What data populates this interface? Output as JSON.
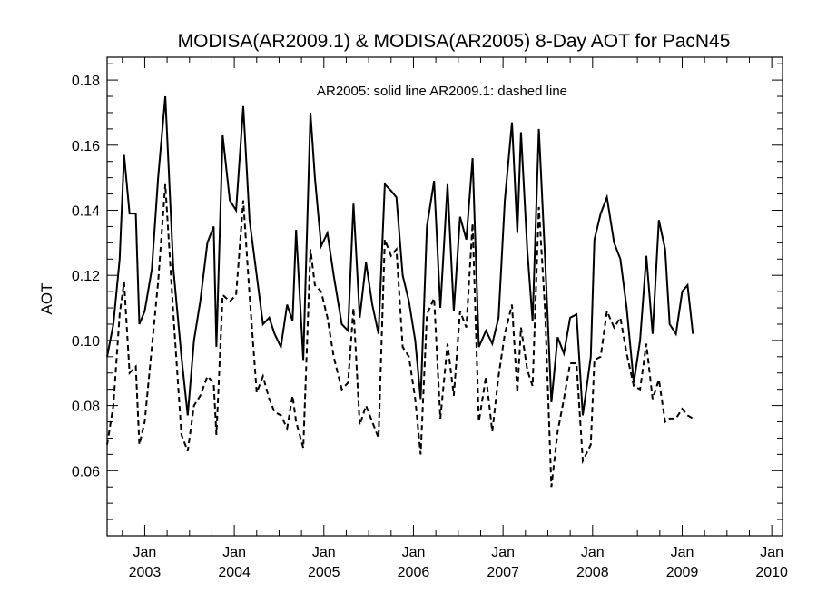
{
  "chart_data": {
    "type": "line",
    "title": "MODISA(AR2009.1) & MODISA(AR2005) 8-Day AOT for PacN45",
    "annotation": "AR2005: solid line   AR2009.1: dashed line",
    "ylabel": "AOT",
    "xlabel": "",
    "ylim": [
      0.04,
      0.187
    ],
    "xlim": [
      2002.58,
      2010.12
    ],
    "y_ticks": [
      0.06,
      0.08,
      0.1,
      0.12,
      0.14,
      0.16,
      0.18
    ],
    "y_tick_labels": [
      "0.06",
      "0.08",
      "0.10",
      "0.12",
      "0.14",
      "0.16",
      "0.18"
    ],
    "x_ticks": [
      {
        "value": 2003,
        "line1": "Jan",
        "line2": "2003"
      },
      {
        "value": 2004,
        "line1": "Jan",
        "line2": "2004"
      },
      {
        "value": 2005,
        "line1": "Jan",
        "line2": "2005"
      },
      {
        "value": 2006,
        "line1": "Jan",
        "line2": "2006"
      },
      {
        "value": 2007,
        "line1": "Jan",
        "line2": "2007"
      },
      {
        "value": 2008,
        "line1": "Jan",
        "line2": "2008"
      },
      {
        "value": 2009,
        "line1": "Jan",
        "line2": "2009"
      },
      {
        "value": 2010,
        "line1": "Jan",
        "line2": "2010"
      }
    ],
    "grid": false,
    "series": [
      {
        "name": "AR2005",
        "style": "solid",
        "points": [
          [
            2002.58,
            0.095
          ],
          [
            2002.65,
            0.105
          ],
          [
            2002.72,
            0.125
          ],
          [
            2002.77,
            0.157
          ],
          [
            2002.83,
            0.139
          ],
          [
            2002.9,
            0.139
          ],
          [
            2002.94,
            0.105
          ],
          [
            2003.0,
            0.109
          ],
          [
            2003.08,
            0.122
          ],
          [
            2003.15,
            0.15
          ],
          [
            2003.23,
            0.175
          ],
          [
            2003.32,
            0.122
          ],
          [
            2003.41,
            0.095
          ],
          [
            2003.48,
            0.077
          ],
          [
            2003.55,
            0.1
          ],
          [
            2003.62,
            0.112
          ],
          [
            2003.7,
            0.13
          ],
          [
            2003.77,
            0.135
          ],
          [
            2003.8,
            0.098
          ],
          [
            2003.87,
            0.163
          ],
          [
            2003.95,
            0.143
          ],
          [
            2004.02,
            0.14
          ],
          [
            2004.1,
            0.172
          ],
          [
            2004.17,
            0.137
          ],
          [
            2004.25,
            0.12
          ],
          [
            2004.32,
            0.105
          ],
          [
            2004.39,
            0.107
          ],
          [
            2004.45,
            0.102
          ],
          [
            2004.52,
            0.098
          ],
          [
            2004.59,
            0.111
          ],
          [
            2004.65,
            0.106
          ],
          [
            2004.69,
            0.134
          ],
          [
            2004.77,
            0.094
          ],
          [
            2004.85,
            0.17
          ],
          [
            2004.9,
            0.15
          ],
          [
            2004.97,
            0.129
          ],
          [
            2005.04,
            0.133
          ],
          [
            2005.11,
            0.12
          ],
          [
            2005.2,
            0.105
          ],
          [
            2005.27,
            0.103
          ],
          [
            2005.33,
            0.142
          ],
          [
            2005.4,
            0.107
          ],
          [
            2005.47,
            0.124
          ],
          [
            2005.54,
            0.111
          ],
          [
            2005.61,
            0.102
          ],
          [
            2005.68,
            0.148
          ],
          [
            2005.75,
            0.146
          ],
          [
            2005.81,
            0.144
          ],
          [
            2005.88,
            0.12
          ],
          [
            2005.95,
            0.112
          ],
          [
            2006.02,
            0.1
          ],
          [
            2006.08,
            0.082
          ],
          [
            2006.15,
            0.135
          ],
          [
            2006.23,
            0.149
          ],
          [
            2006.3,
            0.11
          ],
          [
            2006.38,
            0.148
          ],
          [
            2006.45,
            0.109
          ],
          [
            2006.52,
            0.138
          ],
          [
            2006.59,
            0.131
          ],
          [
            2006.66,
            0.156
          ],
          [
            2006.73,
            0.098
          ],
          [
            2006.81,
            0.103
          ],
          [
            2006.88,
            0.099
          ],
          [
            2006.95,
            0.107
          ],
          [
            2007.02,
            0.143
          ],
          [
            2007.1,
            0.167
          ],
          [
            2007.16,
            0.133
          ],
          [
            2007.2,
            0.164
          ],
          [
            2007.27,
            0.128
          ],
          [
            2007.33,
            0.106
          ],
          [
            2007.4,
            0.165
          ],
          [
            2007.47,
            0.125
          ],
          [
            2007.54,
            0.081
          ],
          [
            2007.61,
            0.101
          ],
          [
            2007.68,
            0.096
          ],
          [
            2007.75,
            0.107
          ],
          [
            2007.82,
            0.108
          ],
          [
            2007.89,
            0.077
          ],
          [
            2007.98,
            0.095
          ],
          [
            2008.02,
            0.131
          ],
          [
            2008.09,
            0.139
          ],
          [
            2008.16,
            0.144
          ],
          [
            2008.24,
            0.13
          ],
          [
            2008.31,
            0.125
          ],
          [
            2008.38,
            0.11
          ],
          [
            2008.46,
            0.087
          ],
          [
            2008.53,
            0.1
          ],
          [
            2008.6,
            0.126
          ],
          [
            2008.67,
            0.102
          ],
          [
            2008.74,
            0.137
          ],
          [
            2008.81,
            0.128
          ],
          [
            2008.86,
            0.105
          ],
          [
            2008.93,
            0.102
          ],
          [
            2009.0,
            0.115
          ],
          [
            2009.06,
            0.117
          ],
          [
            2009.12,
            0.102
          ]
        ]
      },
      {
        "name": "AR2009.1",
        "style": "dashed",
        "points": [
          [
            2002.58,
            0.068
          ],
          [
            2002.65,
            0.08
          ],
          [
            2002.72,
            0.108
          ],
          [
            2002.77,
            0.118
          ],
          [
            2002.83,
            0.09
          ],
          [
            2002.9,
            0.092
          ],
          [
            2002.94,
            0.068
          ],
          [
            2003.0,
            0.075
          ],
          [
            2003.08,
            0.098
          ],
          [
            2003.15,
            0.118
          ],
          [
            2003.23,
            0.148
          ],
          [
            2003.32,
            0.108
          ],
          [
            2003.41,
            0.071
          ],
          [
            2003.48,
            0.066
          ],
          [
            2003.55,
            0.08
          ],
          [
            2003.62,
            0.083
          ],
          [
            2003.7,
            0.089
          ],
          [
            2003.77,
            0.087
          ],
          [
            2003.8,
            0.071
          ],
          [
            2003.87,
            0.114
          ],
          [
            2003.95,
            0.112
          ],
          [
            2004.02,
            0.114
          ],
          [
            2004.1,
            0.143
          ],
          [
            2004.17,
            0.114
          ],
          [
            2004.25,
            0.084
          ],
          [
            2004.32,
            0.089
          ],
          [
            2004.39,
            0.082
          ],
          [
            2004.45,
            0.078
          ],
          [
            2004.52,
            0.077
          ],
          [
            2004.59,
            0.073
          ],
          [
            2004.65,
            0.083
          ],
          [
            2004.69,
            0.075
          ],
          [
            2004.77,
            0.067
          ],
          [
            2004.85,
            0.128
          ],
          [
            2004.9,
            0.117
          ],
          [
            2004.97,
            0.115
          ],
          [
            2005.04,
            0.107
          ],
          [
            2005.11,
            0.095
          ],
          [
            2005.2,
            0.085
          ],
          [
            2005.27,
            0.087
          ],
          [
            2005.33,
            0.11
          ],
          [
            2005.4,
            0.074
          ],
          [
            2005.47,
            0.08
          ],
          [
            2005.54,
            0.075
          ],
          [
            2005.61,
            0.07
          ],
          [
            2005.68,
            0.131
          ],
          [
            2005.75,
            0.126
          ],
          [
            2005.81,
            0.128
          ],
          [
            2005.88,
            0.098
          ],
          [
            2005.95,
            0.095
          ],
          [
            2006.02,
            0.082
          ],
          [
            2006.08,
            0.065
          ],
          [
            2006.15,
            0.108
          ],
          [
            2006.23,
            0.113
          ],
          [
            2006.3,
            0.076
          ],
          [
            2006.38,
            0.099
          ],
          [
            2006.45,
            0.083
          ],
          [
            2006.52,
            0.109
          ],
          [
            2006.59,
            0.104
          ],
          [
            2006.66,
            0.136
          ],
          [
            2006.73,
            0.075
          ],
          [
            2006.81,
            0.089
          ],
          [
            2006.88,
            0.072
          ],
          [
            2006.95,
            0.089
          ],
          [
            2007.02,
            0.102
          ],
          [
            2007.1,
            0.111
          ],
          [
            2007.16,
            0.084
          ],
          [
            2007.2,
            0.104
          ],
          [
            2007.27,
            0.091
          ],
          [
            2007.33,
            0.086
          ],
          [
            2007.4,
            0.141
          ],
          [
            2007.47,
            0.109
          ],
          [
            2007.54,
            0.055
          ],
          [
            2007.61,
            0.072
          ],
          [
            2007.68,
            0.082
          ],
          [
            2007.75,
            0.093
          ],
          [
            2007.82,
            0.093
          ],
          [
            2007.89,
            0.063
          ],
          [
            2007.98,
            0.068
          ],
          [
            2008.02,
            0.094
          ],
          [
            2008.09,
            0.095
          ],
          [
            2008.16,
            0.109
          ],
          [
            2008.24,
            0.104
          ],
          [
            2008.31,
            0.107
          ],
          [
            2008.38,
            0.096
          ],
          [
            2008.46,
            0.086
          ],
          [
            2008.53,
            0.085
          ],
          [
            2008.6,
            0.099
          ],
          [
            2008.67,
            0.082
          ],
          [
            2008.74,
            0.088
          ],
          [
            2008.81,
            0.075
          ],
          [
            2008.86,
            0.076
          ],
          [
            2008.93,
            0.076
          ],
          [
            2009.0,
            0.079
          ],
          [
            2009.06,
            0.077
          ],
          [
            2009.12,
            0.076
          ]
        ]
      }
    ]
  }
}
